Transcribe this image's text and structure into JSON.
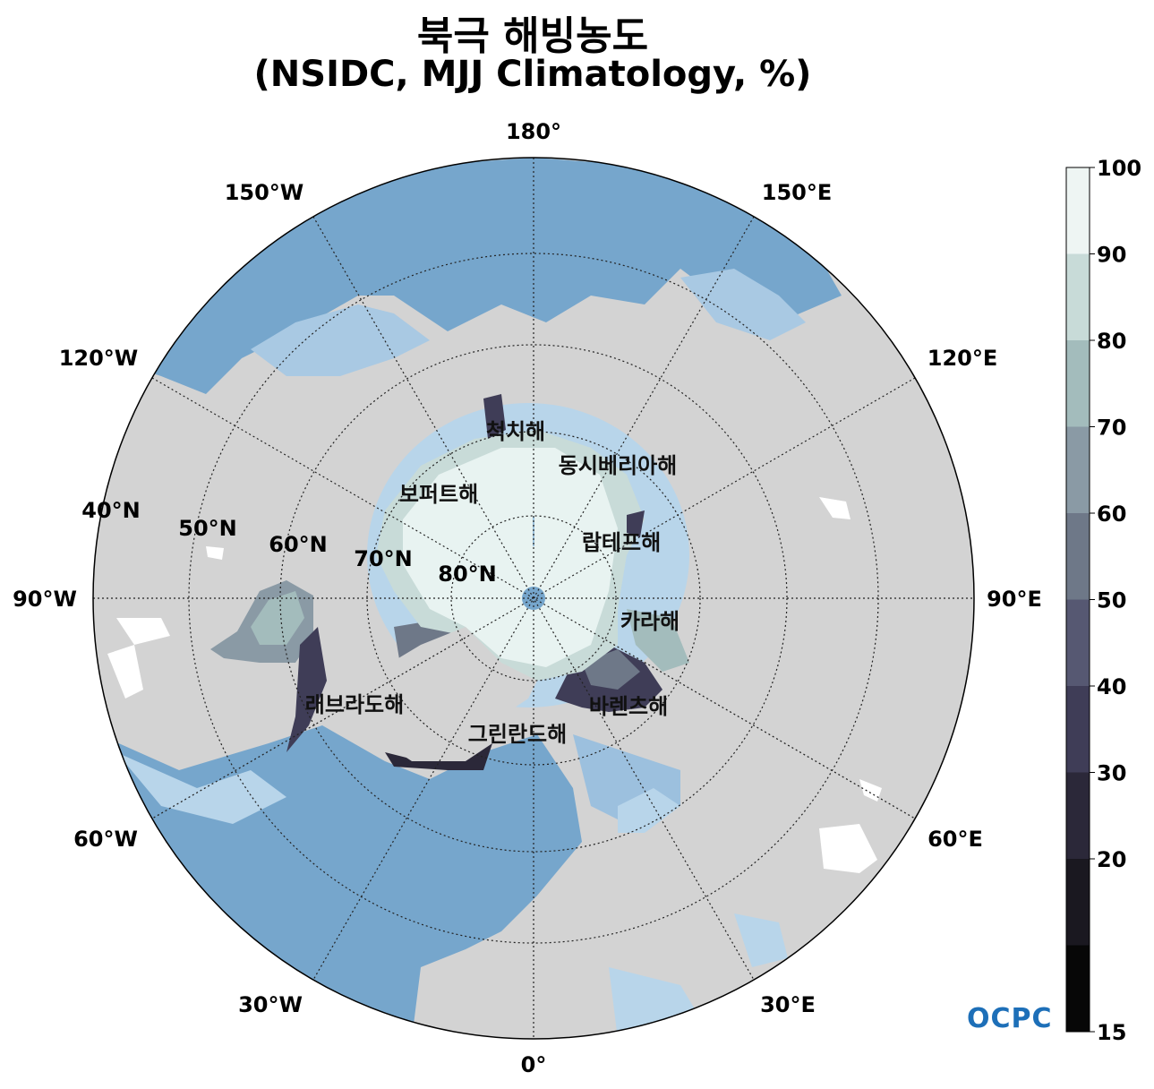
{
  "title": {
    "line1": "북극 해빙농도",
    "line2": "(NSIDC, MJJ Climatology, %)"
  },
  "longitude_labels": [
    {
      "id": "lon-180",
      "text": "180°"
    },
    {
      "id": "lon-150e",
      "text": "150°E"
    },
    {
      "id": "lon-120e",
      "text": "120°E"
    },
    {
      "id": "lon-90e",
      "text": "90°E"
    },
    {
      "id": "lon-60e",
      "text": "60°E"
    },
    {
      "id": "lon-30e",
      "text": "30°E"
    },
    {
      "id": "lon-0",
      "text": "0°"
    },
    {
      "id": "lon-30w",
      "text": "30°W"
    },
    {
      "id": "lon-60w",
      "text": "60°W"
    },
    {
      "id": "lon-90w",
      "text": "90°W"
    },
    {
      "id": "lon-120w",
      "text": "120°W"
    },
    {
      "id": "lon-150w",
      "text": "150°W"
    }
  ],
  "latitude_labels": [
    "40°N",
    "50°N",
    "60°N",
    "70°N",
    "80°N"
  ],
  "sea_labels": [
    "척치해",
    "동시베리아해",
    "보퍼트해",
    "랍테프해",
    "카라해",
    "래브라도해",
    "그린란드해",
    "바렌츠해"
  ],
  "colorbar": {
    "ticks": [
      "100",
      "90",
      "80",
      "70",
      "60",
      "50",
      "40",
      "30",
      "20",
      "15"
    ],
    "colors": [
      "#eef5f3",
      "#c8dbd8",
      "#a3bcbc",
      "#8a9aa5",
      "#6e7888",
      "#565872",
      "#3f3d57",
      "#2b2839",
      "#1a1820",
      "#070707"
    ]
  },
  "colors": {
    "land": "#d3d3d3",
    "ocean": "#76a6cc",
    "ocean_shelf": "#b8d5ea",
    "ice_full": "#e8f3f1"
  },
  "logo": {
    "text": "OCPC"
  }
}
